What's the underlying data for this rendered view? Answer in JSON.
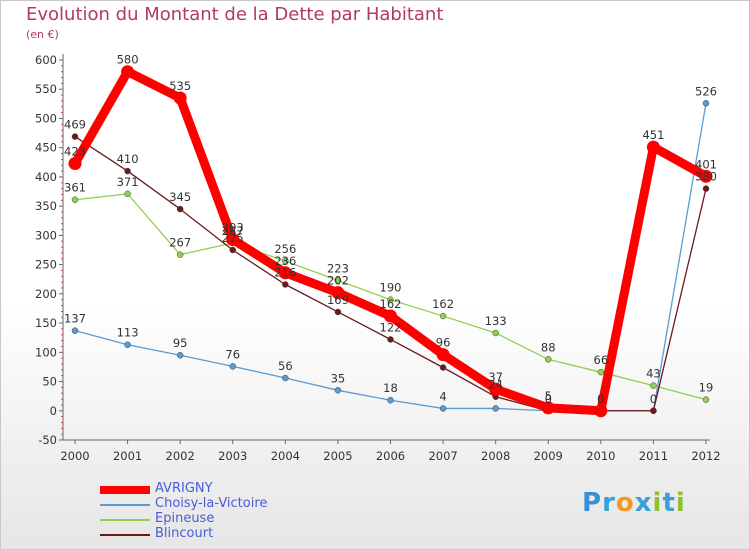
{
  "title": "Evolution du Montant de la Dette par Habitant",
  "subtitle": "(en €)",
  "logo_text": "Proxiti",
  "chart_data": {
    "type": "line",
    "title": "Evolution du Montant de la Dette par Habitant",
    "ylabel": "(en €)",
    "xlabel": "",
    "categories": [
      "2000",
      "2001",
      "2002",
      "2003",
      "2004",
      "2005",
      "2006",
      "2007",
      "2008",
      "2009",
      "2010",
      "2011",
      "2012"
    ],
    "ylim": [
      -50,
      600
    ],
    "yticks": [
      "-50",
      "0",
      "50",
      "100",
      "150",
      "200",
      "250",
      "300",
      "350",
      "400",
      "450",
      "500",
      "550",
      "600"
    ],
    "grid": false,
    "legend_position": "bottom-left",
    "series": [
      {
        "name": "AVRIGNY",
        "color": "#ff0000",
        "values": [
          423,
          580,
          535,
          293,
          236,
          202,
          162,
          96,
          37,
          5,
          0,
          451,
          401
        ],
        "labels": [
          "423",
          "580",
          "535",
          "293",
          "236",
          "202",
          "162",
          "96",
          "37",
          "5",
          "0",
          "451",
          "401"
        ]
      },
      {
        "name": "Choisy-la-Victoire",
        "color": "#5b9bd5",
        "values": [
          137,
          113,
          95,
          76,
          56,
          35,
          18,
          4,
          4,
          0,
          0,
          0,
          526
        ],
        "labels": [
          "137",
          "113",
          "95",
          "76",
          "56",
          "35",
          "18",
          "4",
          "",
          "",
          "",
          "",
          "526"
        ]
      },
      {
        "name": "Epineuse",
        "color": "#90d050",
        "values": [
          361,
          371,
          267,
          287,
          256,
          223,
          190,
          162,
          133,
          88,
          66,
          43,
          19
        ],
        "labels": [
          "361",
          "371",
          "267",
          "287",
          "256",
          "223",
          "190",
          "162",
          "133",
          "88",
          "66",
          "43",
          "19"
        ]
      },
      {
        "name": "Blincourt",
        "color": "#6b1a1a",
        "values": [
          469,
          410,
          345,
          275,
          216,
          169,
          122,
          74,
          24,
          0,
          0,
          0,
          380
        ],
        "labels": [
          "469",
          "410",
          "345",
          "275",
          "216",
          "169",
          "122",
          "",
          "24",
          "0",
          "0",
          "0",
          "380"
        ]
      }
    ]
  }
}
